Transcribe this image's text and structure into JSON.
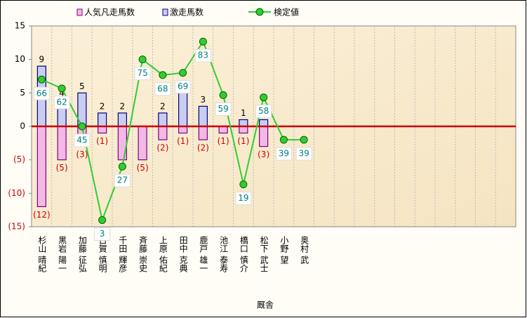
{
  "chart_data": {
    "type": "bar-line",
    "x_label": "厩舎",
    "categories": [
      "杉山 晴紀",
      "黒岩 陽一",
      "加藤 征弘",
      "古賀 慎明",
      "千田 輝彦",
      "斉藤 崇史",
      "上原 佑紀",
      "田中 克典",
      "鹿戸 雄一",
      "池江 泰寿",
      "橋口 慎介",
      "松下 武士",
      "小野 望",
      "奥村 武",
      null,
      null,
      null,
      null,
      null,
      null,
      null,
      null,
      null,
      null
    ],
    "series": [
      {
        "name": "人気凡走馬数",
        "type": "bar",
        "color": "#f2b8e6",
        "stroke": "#800080",
        "values": [
          -12,
          -5,
          -3,
          -1,
          -5,
          -5,
          -2,
          -1,
          -2,
          -1,
          -1,
          -3,
          0,
          0,
          null,
          null,
          null,
          null,
          null,
          null,
          null,
          null,
          null,
          null
        ],
        "value_labels": [
          "(12)",
          "(5)",
          "(3)",
          "(1)",
          null,
          "(5)",
          "(2)",
          "(1)",
          "(2)",
          "(1)",
          "(1)",
          "(3)",
          null,
          null,
          null,
          null,
          null,
          null,
          null,
          null,
          null,
          null,
          null,
          null
        ]
      },
      {
        "name": "激走馬数",
        "type": "bar",
        "color": "#c8cdf2",
        "stroke": "#000080",
        "values": [
          9,
          4,
          5,
          2,
          2,
          0,
          2,
          5,
          3,
          0,
          1,
          1,
          0,
          0,
          null,
          null,
          null,
          null,
          null,
          null,
          null,
          null,
          null,
          null
        ]
      },
      {
        "name": "検定値",
        "type": "line",
        "axis": "y2",
        "color": "#33cc33",
        "values": [
          66,
          62,
          45,
          3,
          27,
          75,
          68,
          69,
          83,
          59,
          19,
          58,
          39,
          39,
          null,
          null,
          null,
          null,
          null,
          null,
          null,
          null,
          null,
          null
        ]
      }
    ],
    "ylim": [
      -15,
      15
    ],
    "yticks": [
      15,
      10,
      5,
      0,
      {
        "value": -5,
        "label": "(5)"
      },
      {
        "value": -10,
        "label": "(10)"
      },
      {
        "value": -15,
        "label": "(15)"
      }
    ],
    "y2lim": [
      0,
      90
    ],
    "zero_line_color": "#cc0000"
  }
}
